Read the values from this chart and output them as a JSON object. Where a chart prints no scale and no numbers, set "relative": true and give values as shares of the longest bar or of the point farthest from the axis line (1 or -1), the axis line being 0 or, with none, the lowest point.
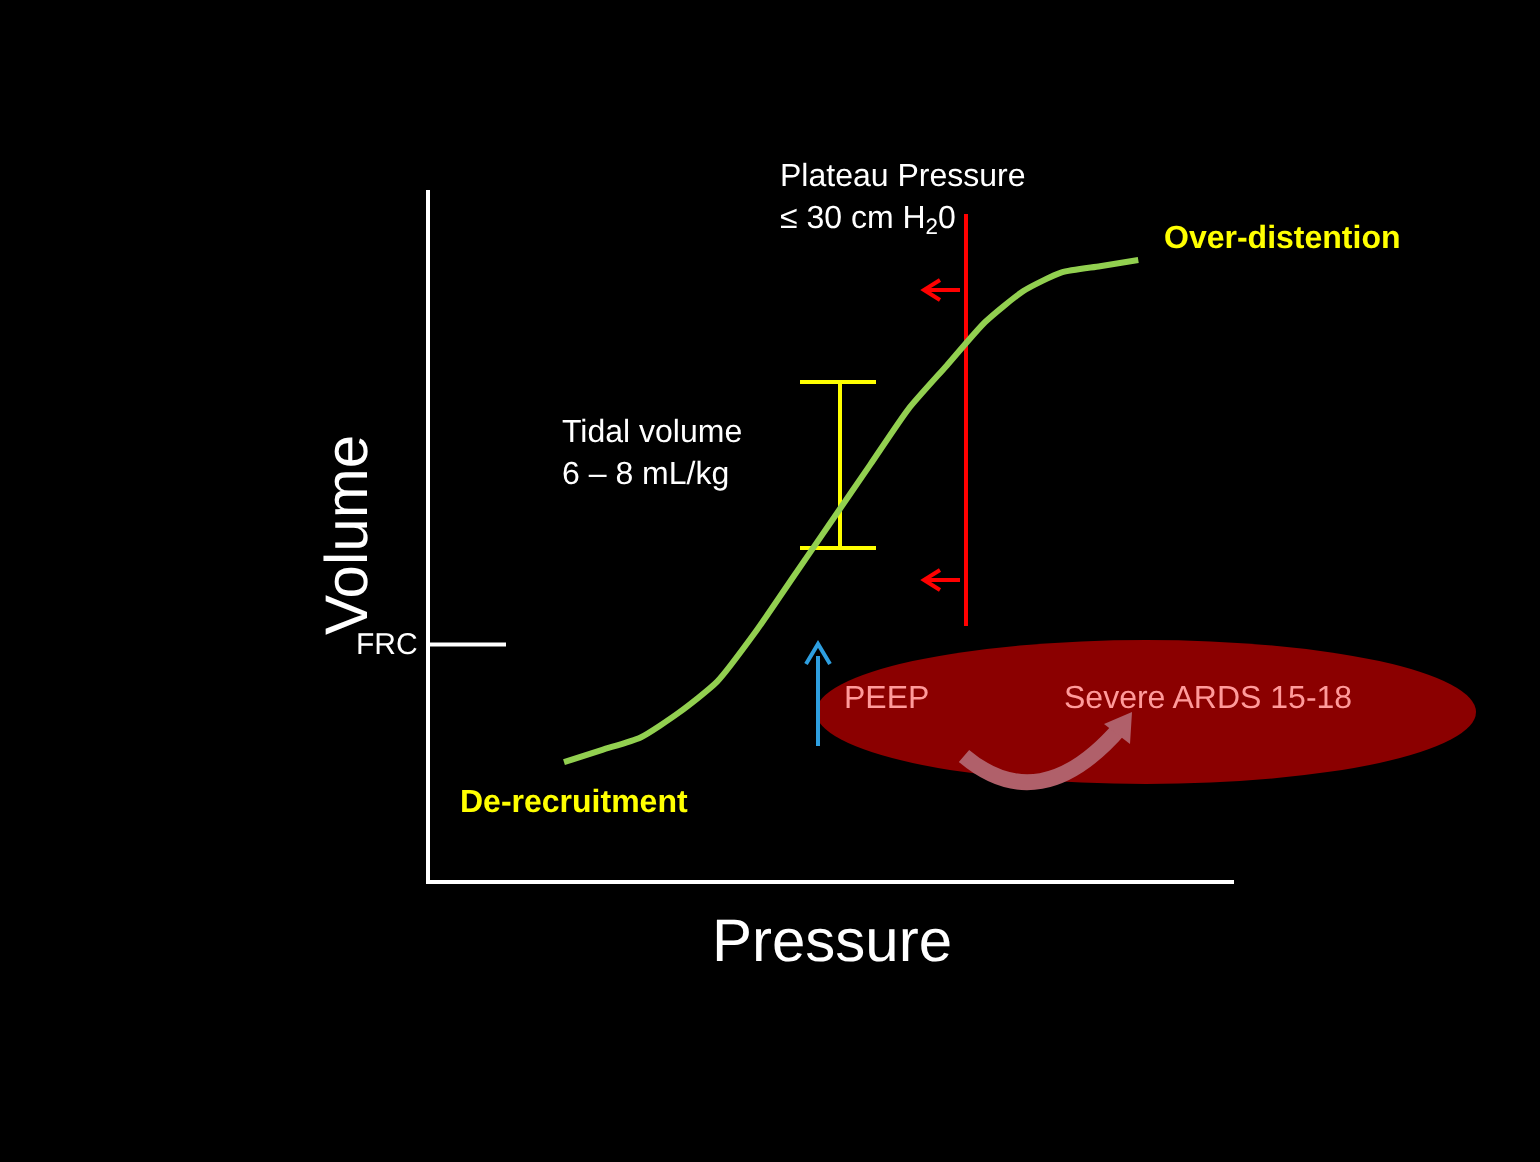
{
  "chart_data": {
    "type": "line",
    "relative": true,
    "xlabel": "Pressure",
    "ylabel": "Volume",
    "categories": [
      null,
      null,
      null,
      null,
      null,
      null,
      null,
      null,
      null,
      null,
      null,
      null,
      null,
      null,
      null,
      null,
      null,
      null,
      null,
      null,
      null
    ],
    "series": [
      {
        "color": "#92d050",
        "values": [
          null,
          null,
          null,
          0.19,
          0.21,
          0.23,
          0.27,
          0.32,
          0.4,
          0.49,
          0.58,
          0.67,
          0.76,
          0.83,
          0.9,
          0.95,
          0.98,
          0.99,
          1,
          null,
          null
        ]
      }
    ],
    "ref_lines": [
      {
        "axis": "y",
        "value": 0.38,
        "label": "FRC",
        "color": "#ffffff"
      }
    ],
    "annotations": [
      "Plateau Pressure\n≤ 30 cm H$_{2}$0",
      "Over-distention",
      "Tidal volume\n6 – 8 mL/kg",
      "De-recruitment",
      "PEEP",
      "Severe ARDS 15-18"
    ]
  }
}
